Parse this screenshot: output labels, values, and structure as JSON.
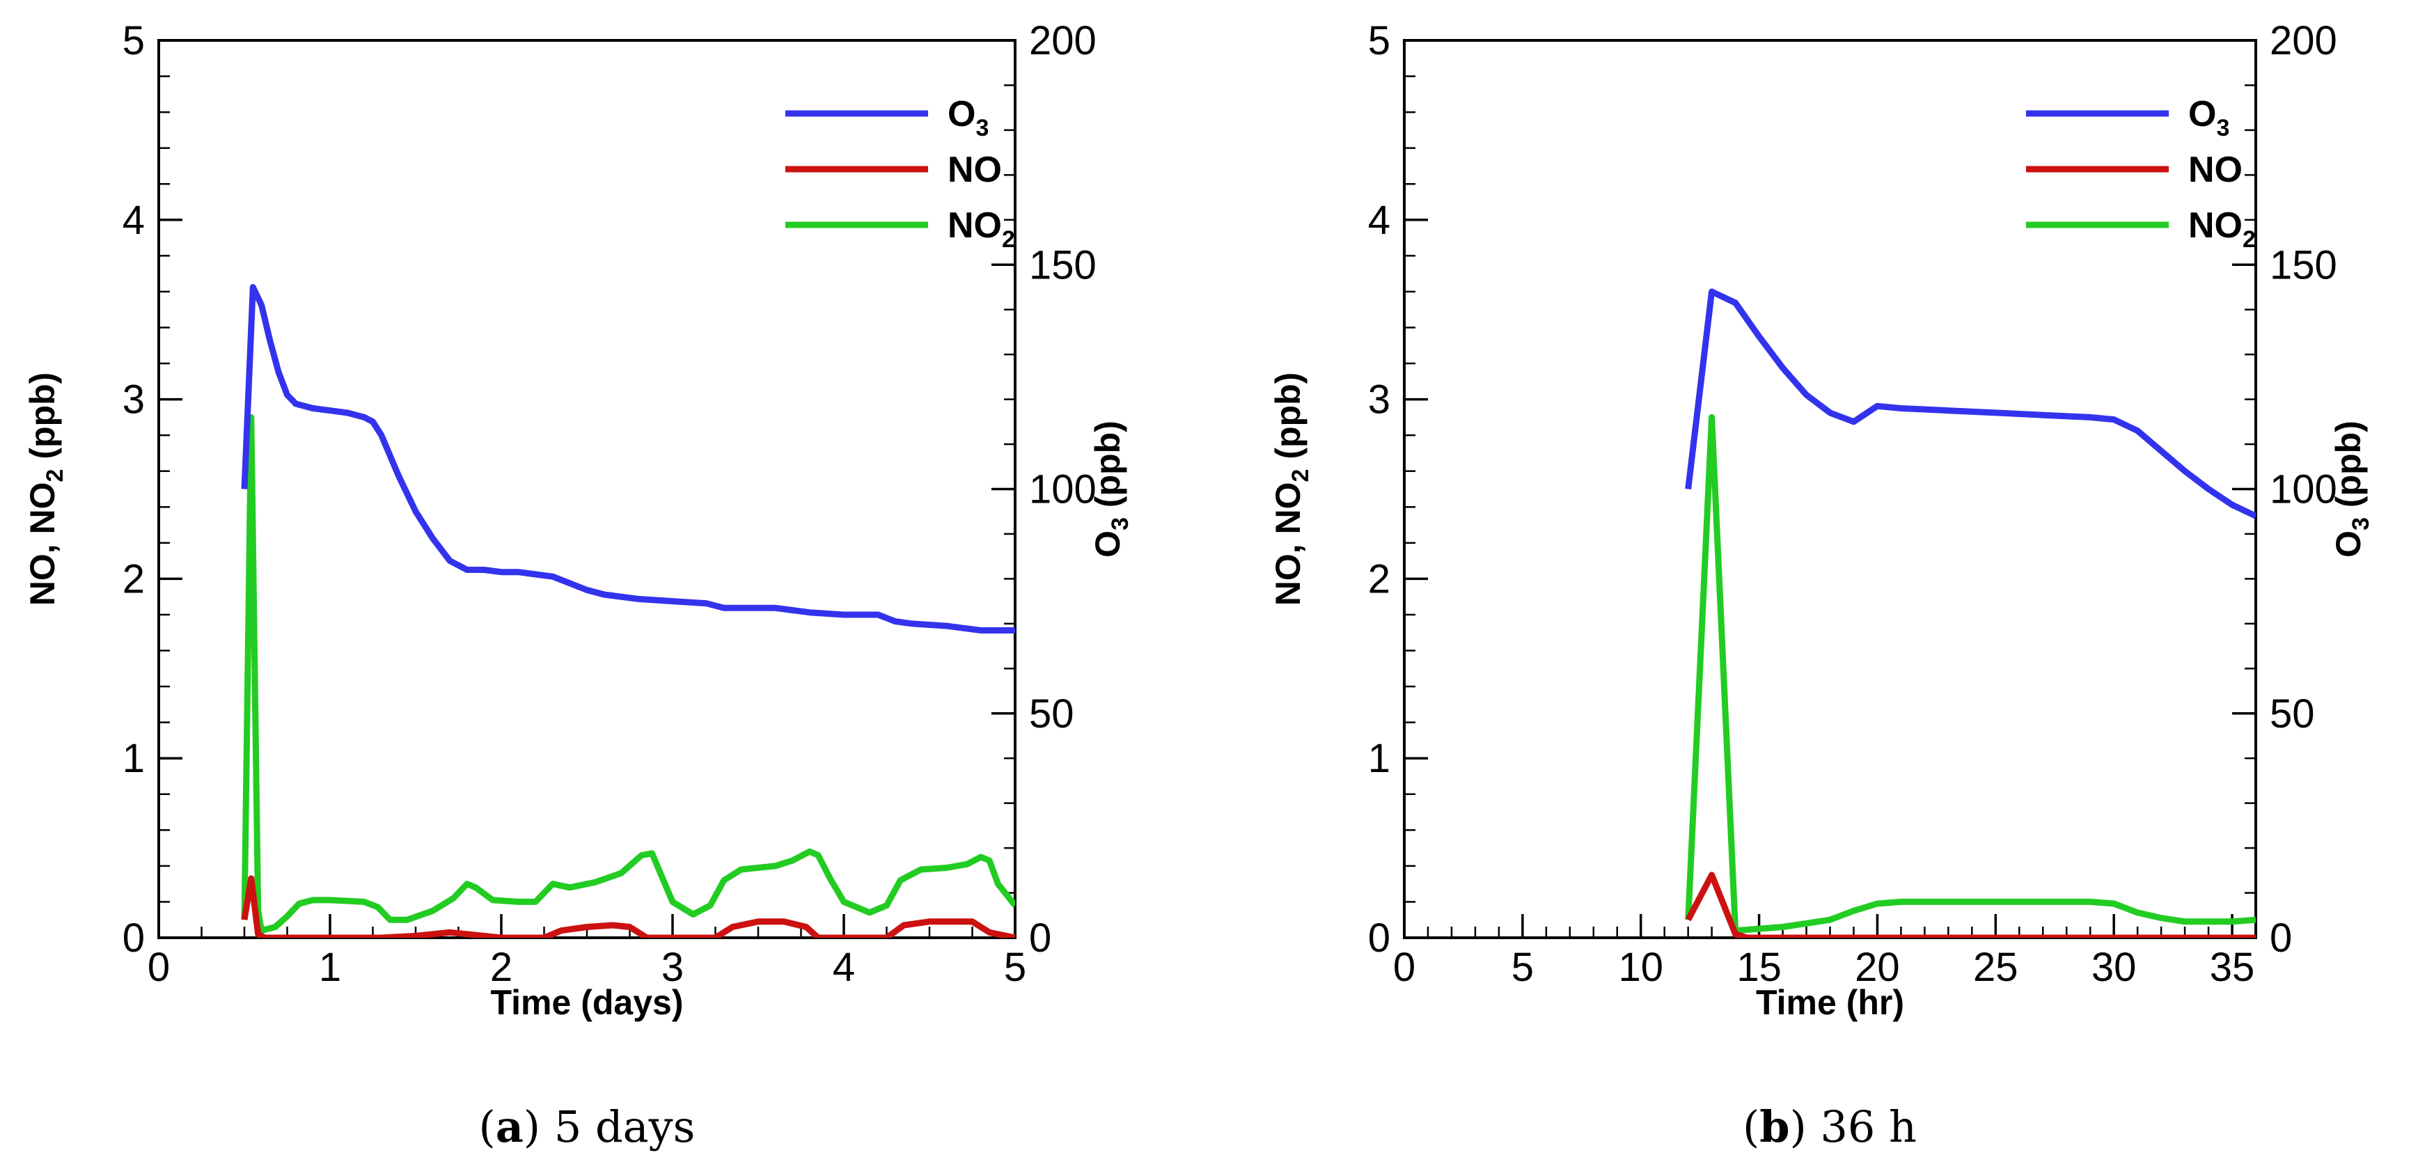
{
  "chart_data": [
    {
      "type": "line",
      "title": "",
      "xlabel": "Time (days)",
      "ylabel_left": "NO, NO2 (ppb)",
      "ylabel_right": "O3 (ppb)",
      "xlim": [
        0,
        5
      ],
      "ylim_left": [
        0,
        5
      ],
      "ylim_right": [
        0,
        200
      ],
      "x_ticks": [
        "0",
        "1",
        "2",
        "3",
        "4",
        "5"
      ],
      "y_left_ticks": [
        "0",
        "1",
        "2",
        "3",
        "4",
        "5"
      ],
      "y_right_ticks": [
        "0",
        "50",
        "100",
        "150",
        "200"
      ],
      "x_minor_step": 0.25,
      "legend_position": "top-right",
      "caption": {
        "label": "a",
        "text": "5 days"
      },
      "series": [
        {
          "name": "O3",
          "display": "O",
          "subscript": "3",
          "axis": "right",
          "color": "#3333ee",
          "points": [
            [
              0.5,
              100
            ],
            [
              0.55,
              145
            ],
            [
              0.6,
              141
            ],
            [
              0.65,
              133
            ],
            [
              0.7,
              126
            ],
            [
              0.75,
              121
            ],
            [
              0.8,
              119
            ],
            [
              0.9,
              118
            ],
            [
              1.0,
              117.5
            ],
            [
              1.1,
              117
            ],
            [
              1.2,
              116
            ],
            [
              1.25,
              115
            ],
            [
              1.3,
              112
            ],
            [
              1.4,
              103
            ],
            [
              1.5,
              95
            ],
            [
              1.6,
              89
            ],
            [
              1.7,
              84
            ],
            [
              1.8,
              82
            ],
            [
              1.9,
              82
            ],
            [
              2.0,
              81.5
            ],
            [
              2.1,
              81.5
            ],
            [
              2.2,
              81
            ],
            [
              2.3,
              80.5
            ],
            [
              2.4,
              79
            ],
            [
              2.5,
              77.5
            ],
            [
              2.6,
              76.5
            ],
            [
              2.8,
              75.5
            ],
            [
              3.0,
              75
            ],
            [
              3.2,
              74.5
            ],
            [
              3.3,
              73.5
            ],
            [
              3.5,
              73.5
            ],
            [
              3.6,
              73.5
            ],
            [
              3.7,
              73
            ],
            [
              3.8,
              72.5
            ],
            [
              4.0,
              72
            ],
            [
              4.2,
              72
            ],
            [
              4.3,
              70.5
            ],
            [
              4.4,
              70
            ],
            [
              4.6,
              69.5
            ],
            [
              4.7,
              69
            ],
            [
              4.8,
              68.5
            ],
            [
              5.0,
              68.5
            ]
          ]
        },
        {
          "name": "NO",
          "display": "NO",
          "subscript": "",
          "axis": "left",
          "color": "#cc1111",
          "points": [
            [
              0.5,
              0.1
            ],
            [
              0.54,
              0.33
            ],
            [
              0.58,
              0.02
            ],
            [
              0.62,
              0.0
            ],
            [
              1.0,
              0.0
            ],
            [
              1.3,
              0.0
            ],
            [
              1.5,
              0.01
            ],
            [
              1.7,
              0.03
            ],
            [
              1.8,
              0.02
            ],
            [
              2.0,
              0.0
            ],
            [
              2.25,
              0.0
            ],
            [
              2.35,
              0.04
            ],
            [
              2.5,
              0.06
            ],
            [
              2.65,
              0.07
            ],
            [
              2.75,
              0.06
            ],
            [
              2.85,
              0.0
            ],
            [
              3.25,
              0.0
            ],
            [
              3.35,
              0.06
            ],
            [
              3.5,
              0.09
            ],
            [
              3.65,
              0.09
            ],
            [
              3.78,
              0.06
            ],
            [
              3.85,
              0.0
            ],
            [
              4.25,
              0.0
            ],
            [
              4.35,
              0.07
            ],
            [
              4.5,
              0.09
            ],
            [
              4.75,
              0.09
            ],
            [
              4.85,
              0.03
            ],
            [
              5.0,
              0.0
            ]
          ]
        },
        {
          "name": "NO2",
          "display": "NO",
          "subscript": "2",
          "axis": "left",
          "color": "#22cc22",
          "points": [
            [
              0.5,
              0.1
            ],
            [
              0.54,
              2.9
            ],
            [
              0.58,
              0.15
            ],
            [
              0.6,
              0.04
            ],
            [
              0.68,
              0.06
            ],
            [
              0.75,
              0.12
            ],
            [
              0.82,
              0.19
            ],
            [
              0.9,
              0.21
            ],
            [
              1.0,
              0.21
            ],
            [
              1.2,
              0.2
            ],
            [
              1.28,
              0.17
            ],
            [
              1.35,
              0.1
            ],
            [
              1.45,
              0.1
            ],
            [
              1.6,
              0.15
            ],
            [
              1.72,
              0.22
            ],
            [
              1.8,
              0.3
            ],
            [
              1.85,
              0.28
            ],
            [
              1.95,
              0.21
            ],
            [
              2.1,
              0.2
            ],
            [
              2.2,
              0.2
            ],
            [
              2.3,
              0.3
            ],
            [
              2.4,
              0.28
            ],
            [
              2.55,
              0.31
            ],
            [
              2.7,
              0.36
            ],
            [
              2.82,
              0.46
            ],
            [
              2.88,
              0.47
            ],
            [
              2.92,
              0.38
            ],
            [
              3.0,
              0.2
            ],
            [
              3.12,
              0.13
            ],
            [
              3.22,
              0.18
            ],
            [
              3.3,
              0.32
            ],
            [
              3.4,
              0.38
            ],
            [
              3.6,
              0.4
            ],
            [
              3.7,
              0.43
            ],
            [
              3.8,
              0.48
            ],
            [
              3.85,
              0.46
            ],
            [
              3.92,
              0.33
            ],
            [
              4.0,
              0.2
            ],
            [
              4.15,
              0.14
            ],
            [
              4.25,
              0.18
            ],
            [
              4.33,
              0.32
            ],
            [
              4.45,
              0.38
            ],
            [
              4.6,
              0.39
            ],
            [
              4.72,
              0.41
            ],
            [
              4.8,
              0.45
            ],
            [
              4.85,
              0.43
            ],
            [
              4.9,
              0.3
            ],
            [
              5.0,
              0.18
            ]
          ]
        }
      ]
    },
    {
      "type": "line",
      "title": "",
      "xlabel": "Time (hr)",
      "ylabel_left": "NO, NO2 (ppb)",
      "ylabel_right": "O3 (ppb)",
      "xlim": [
        0,
        36
      ],
      "ylim_left": [
        0,
        5
      ],
      "ylim_right": [
        0,
        200
      ],
      "x_ticks": [
        "0",
        "5",
        "10",
        "15",
        "20",
        "25",
        "30",
        "35"
      ],
      "y_left_ticks": [
        "0",
        "1",
        "2",
        "3",
        "4",
        "5"
      ],
      "y_right_ticks": [
        "0",
        "50",
        "100",
        "150",
        "200"
      ],
      "x_minor_step": 1,
      "legend_position": "top-right",
      "caption": {
        "label": "b",
        "text": "36 h"
      },
      "series": [
        {
          "name": "O3",
          "display": "O",
          "subscript": "3",
          "axis": "right",
          "color": "#3333ee",
          "points": [
            [
              12,
              100
            ],
            [
              13,
              144
            ],
            [
              14,
              141.5
            ],
            [
              15,
              134
            ],
            [
              16,
              127
            ],
            [
              17,
              121
            ],
            [
              18,
              117
            ],
            [
              19,
              115
            ],
            [
              20,
              118.5
            ],
            [
              21,
              118
            ],
            [
              23,
              117.5
            ],
            [
              25,
              117
            ],
            [
              27,
              116.5
            ],
            [
              29,
              116
            ],
            [
              30,
              115.5
            ],
            [
              31,
              113
            ],
            [
              32,
              108.5
            ],
            [
              33,
              104
            ],
            [
              34,
              100
            ],
            [
              35,
              96.5
            ],
            [
              36,
              94
            ]
          ]
        },
        {
          "name": "NO",
          "display": "NO",
          "subscript": "",
          "axis": "left",
          "color": "#cc1111",
          "points": [
            [
              12,
              0.1
            ],
            [
              13,
              0.35
            ],
            [
              14,
              0.02
            ],
            [
              14.5,
              0.0
            ],
            [
              20,
              0.0
            ],
            [
              30,
              0.0
            ],
            [
              36,
              0.0
            ]
          ]
        },
        {
          "name": "NO2",
          "display": "NO",
          "subscript": "2",
          "axis": "left",
          "color": "#22cc22",
          "points": [
            [
              12,
              0.1
            ],
            [
              13,
              2.9
            ],
            [
              14,
              0.04
            ],
            [
              15,
              0.05
            ],
            [
              16,
              0.06
            ],
            [
              17,
              0.08
            ],
            [
              18,
              0.1
            ],
            [
              19,
              0.15
            ],
            [
              20,
              0.19
            ],
            [
              21,
              0.2
            ],
            [
              23,
              0.2
            ],
            [
              25,
              0.2
            ],
            [
              27,
              0.2
            ],
            [
              29,
              0.2
            ],
            [
              30,
              0.19
            ],
            [
              31,
              0.14
            ],
            [
              32,
              0.11
            ],
            [
              33,
              0.09
            ],
            [
              34,
              0.09
            ],
            [
              35,
              0.09
            ],
            [
              36,
              0.1
            ]
          ]
        }
      ]
    }
  ]
}
